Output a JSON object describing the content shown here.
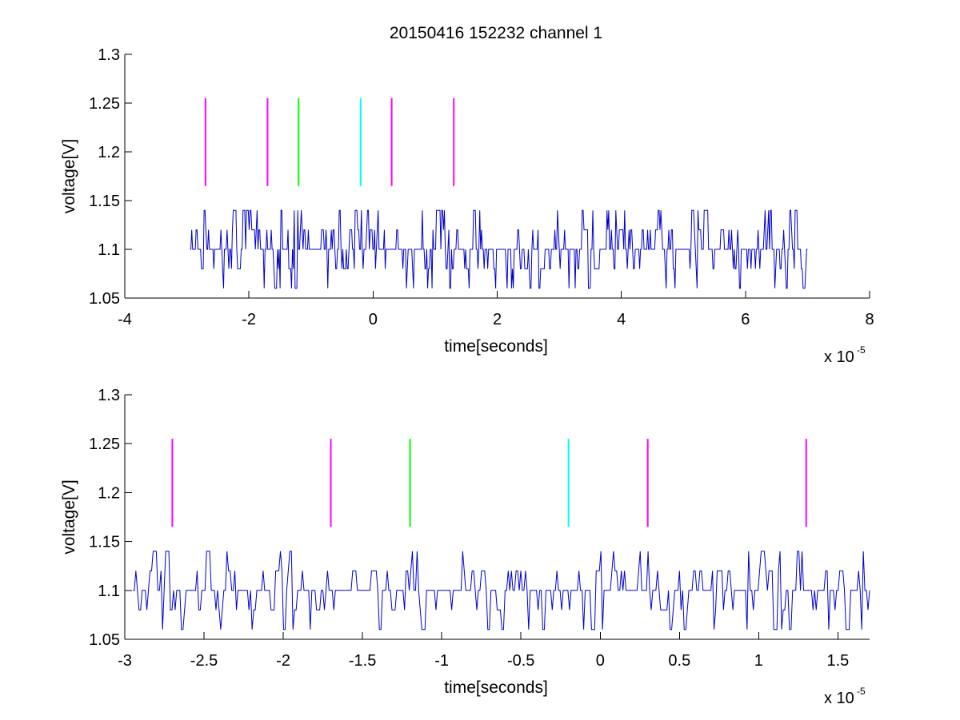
{
  "title": "20150416 152232 channel 1",
  "chart_data": [
    {
      "type": "line",
      "title": "20150416 152232 channel 1",
      "xlabel": "time[seconds]",
      "ylabel": "voltage[V]",
      "x_scale_label": "x 10",
      "x_scale_exponent": "-5",
      "xlim": [
        -4,
        8
      ],
      "ylim": [
        1.05,
        1.3
      ],
      "xticks": [
        -4,
        -2,
        0,
        2,
        4,
        6,
        8
      ],
      "xtick_labels": [
        "-4",
        "-2",
        "0",
        "2",
        "4",
        "6",
        "8"
      ],
      "yticks": [
        1.05,
        1.1,
        1.15,
        1.2,
        1.25,
        1.3
      ],
      "ytick_labels": [
        "1.05",
        "1.1",
        "1.15",
        "1.2",
        "1.25",
        "1.3"
      ],
      "grid": false,
      "signal": {
        "color": "#0000cc",
        "x_range": [
          -2.95,
          7.0
        ],
        "levels": [
          1.06,
          1.08,
          1.1,
          1.12,
          1.14
        ],
        "baseline": 1.1,
        "sample_count": 700
      },
      "markers": [
        {
          "x": -2.7,
          "y_range": [
            1.165,
            1.255
          ],
          "color": "#ff00ff"
        },
        {
          "x": -1.7,
          "y_range": [
            1.165,
            1.255
          ],
          "color": "#ff00ff"
        },
        {
          "x": -1.2,
          "y_range": [
            1.165,
            1.255
          ],
          "color": "#00ff00"
        },
        {
          "x": -0.2,
          "y_range": [
            1.165,
            1.255
          ],
          "color": "#00ffff"
        },
        {
          "x": 0.3,
          "y_range": [
            1.165,
            1.255
          ],
          "color": "#ff00ff"
        },
        {
          "x": 1.3,
          "y_range": [
            1.165,
            1.255
          ],
          "color": "#ff00ff"
        }
      ]
    },
    {
      "type": "line",
      "title": "",
      "xlabel": "time[seconds]",
      "ylabel": "voltage[V]",
      "x_scale_label": "x 10",
      "x_scale_exponent": "-5",
      "xlim": [
        -3.0,
        1.7
      ],
      "ylim": [
        1.05,
        1.3
      ],
      "xticks": [
        -3,
        -2.5,
        -2,
        -1.5,
        -1,
        -0.5,
        0,
        0.5,
        1,
        1.5
      ],
      "xtick_labels": [
        "-3",
        "-2.5",
        "-2",
        "-1.5",
        "-1",
        "-0.5",
        "0",
        "0.5",
        "1",
        "1.5"
      ],
      "yticks": [
        1.05,
        1.1,
        1.15,
        1.2,
        1.25,
        1.3
      ],
      "ytick_labels": [
        "1.05",
        "1.1",
        "1.15",
        "1.2",
        "1.25",
        "1.3"
      ],
      "grid": false,
      "signal": {
        "color": "#0000cc",
        "x_range": [
          -2.95,
          1.7
        ],
        "levels": [
          1.06,
          1.08,
          1.1,
          1.12,
          1.14
        ],
        "baseline": 1.1,
        "sample_count": 470
      },
      "markers": [
        {
          "x": -2.7,
          "y_range": [
            1.165,
            1.255
          ],
          "color": "#ff00ff"
        },
        {
          "x": -1.7,
          "y_range": [
            1.165,
            1.255
          ],
          "color": "#ff00ff"
        },
        {
          "x": -1.2,
          "y_range": [
            1.165,
            1.255
          ],
          "color": "#00ff00"
        },
        {
          "x": -0.2,
          "y_range": [
            1.165,
            1.255
          ],
          "color": "#00ffff"
        },
        {
          "x": 0.3,
          "y_range": [
            1.165,
            1.255
          ],
          "color": "#ff00ff"
        },
        {
          "x": 1.3,
          "y_range": [
            1.165,
            1.255
          ],
          "color": "#ff00ff"
        }
      ]
    }
  ]
}
